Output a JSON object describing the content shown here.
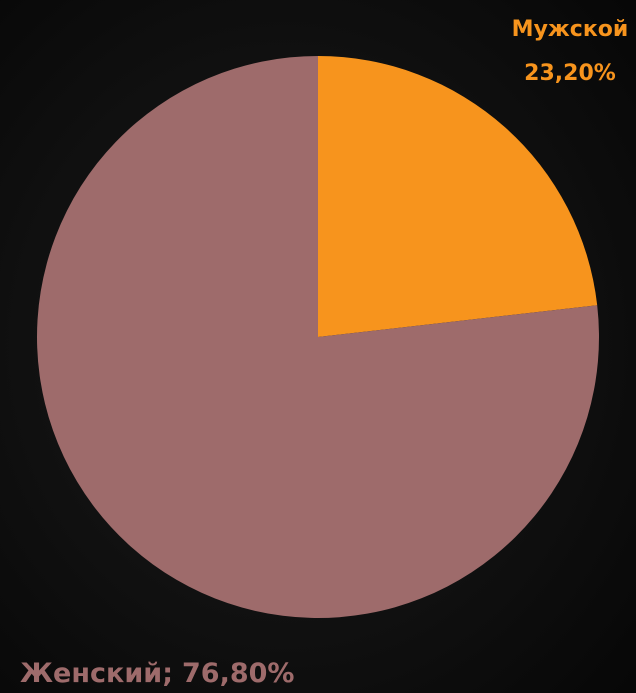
{
  "chart_data": {
    "type": "pie",
    "categories": [
      "Мужской",
      "Женский"
    ],
    "values": [
      23.2,
      76.8
    ],
    "value_labels": [
      "23,20%",
      "76,80%"
    ],
    "separator": ";",
    "colors": [
      "#f7941d",
      "#9e6b6b"
    ],
    "start_angle": 0,
    "direction": "clockwise"
  }
}
